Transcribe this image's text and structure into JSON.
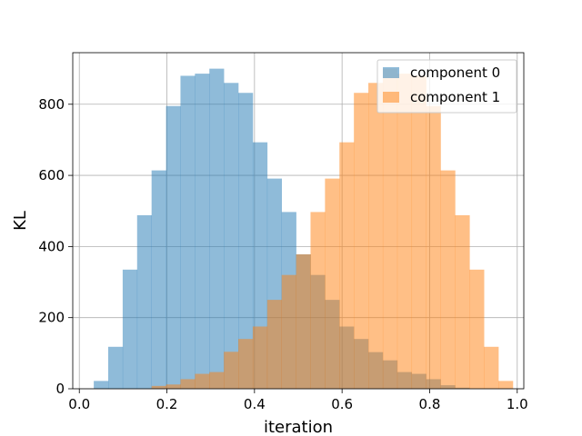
{
  "chart_data": {
    "type": "histogram",
    "title": "",
    "xlabel": "iteration",
    "ylabel": "KL",
    "xlim": [
      -0.015,
      1.015
    ],
    "ylim": [
      0,
      945
    ],
    "grid": true,
    "legend_position": "top-right",
    "xticks": [
      0.0,
      0.2,
      0.4,
      0.6,
      0.8,
      1.0
    ],
    "xtick_labels": [
      "0.0",
      "0.2",
      "0.4",
      "0.6",
      "0.8",
      "1.0"
    ],
    "yticks": [
      0,
      200,
      400,
      600,
      800
    ],
    "ytick_labels": [
      "0",
      "200",
      "400",
      "600",
      "800"
    ],
    "series": [
      {
        "name": "component 0",
        "color": "#1f77b4",
        "opacity": 0.5,
        "bins": [
          {
            "x0": 0.033,
            "x1": 0.066,
            "value": 22
          },
          {
            "x0": 0.066,
            "x1": 0.099,
            "value": 118
          },
          {
            "x0": 0.099,
            "x1": 0.132,
            "value": 335
          },
          {
            "x0": 0.132,
            "x1": 0.165,
            "value": 488
          },
          {
            "x0": 0.165,
            "x1": 0.198,
            "value": 614
          },
          {
            "x0": 0.198,
            "x1": 0.231,
            "value": 795
          },
          {
            "x0": 0.231,
            "x1": 0.264,
            "value": 880
          },
          {
            "x0": 0.264,
            "x1": 0.297,
            "value": 886
          },
          {
            "x0": 0.297,
            "x1": 0.33,
            "value": 900
          },
          {
            "x0": 0.33,
            "x1": 0.363,
            "value": 860
          },
          {
            "x0": 0.363,
            "x1": 0.396,
            "value": 832
          },
          {
            "x0": 0.396,
            "x1": 0.429,
            "value": 693
          },
          {
            "x0": 0.429,
            "x1": 0.462,
            "value": 591
          },
          {
            "x0": 0.462,
            "x1": 0.495,
            "value": 497
          },
          {
            "x0": 0.495,
            "x1": 0.528,
            "value": 378
          },
          {
            "x0": 0.528,
            "x1": 0.561,
            "value": 320
          },
          {
            "x0": 0.561,
            "x1": 0.594,
            "value": 250
          },
          {
            "x0": 0.594,
            "x1": 0.627,
            "value": 175
          },
          {
            "x0": 0.627,
            "x1": 0.66,
            "value": 140
          },
          {
            "x0": 0.66,
            "x1": 0.693,
            "value": 103
          },
          {
            "x0": 0.693,
            "x1": 0.726,
            "value": 80
          },
          {
            "x0": 0.726,
            "x1": 0.759,
            "value": 47
          },
          {
            "x0": 0.759,
            "x1": 0.792,
            "value": 42
          },
          {
            "x0": 0.792,
            "x1": 0.825,
            "value": 27
          },
          {
            "x0": 0.825,
            "x1": 0.858,
            "value": 10
          },
          {
            "x0": 0.858,
            "x1": 0.891,
            "value": 3
          }
        ]
      },
      {
        "name": "component 1",
        "color": "#ff7f0e",
        "opacity": 0.5,
        "bins": [
          {
            "x0": 0.165,
            "x1": 0.198,
            "value": 8
          },
          {
            "x0": 0.198,
            "x1": 0.231,
            "value": 12
          },
          {
            "x0": 0.231,
            "x1": 0.264,
            "value": 27
          },
          {
            "x0": 0.264,
            "x1": 0.297,
            "value": 42
          },
          {
            "x0": 0.297,
            "x1": 0.33,
            "value": 47
          },
          {
            "x0": 0.33,
            "x1": 0.363,
            "value": 104
          },
          {
            "x0": 0.363,
            "x1": 0.396,
            "value": 140
          },
          {
            "x0": 0.396,
            "x1": 0.429,
            "value": 175
          },
          {
            "x0": 0.429,
            "x1": 0.462,
            "value": 250
          },
          {
            "x0": 0.462,
            "x1": 0.495,
            "value": 320
          },
          {
            "x0": 0.495,
            "x1": 0.528,
            "value": 378
          },
          {
            "x0": 0.528,
            "x1": 0.561,
            "value": 497
          },
          {
            "x0": 0.561,
            "x1": 0.594,
            "value": 591
          },
          {
            "x0": 0.594,
            "x1": 0.627,
            "value": 693
          },
          {
            "x0": 0.627,
            "x1": 0.66,
            "value": 832
          },
          {
            "x0": 0.66,
            "x1": 0.693,
            "value": 860
          },
          {
            "x0": 0.693,
            "x1": 0.726,
            "value": 900
          },
          {
            "x0": 0.726,
            "x1": 0.759,
            "value": 886
          },
          {
            "x0": 0.759,
            "x1": 0.792,
            "value": 880
          },
          {
            "x0": 0.792,
            "x1": 0.825,
            "value": 795
          },
          {
            "x0": 0.825,
            "x1": 0.858,
            "value": 614
          },
          {
            "x0": 0.858,
            "x1": 0.891,
            "value": 488
          },
          {
            "x0": 0.891,
            "x1": 0.924,
            "value": 335
          },
          {
            "x0": 0.924,
            "x1": 0.957,
            "value": 118
          },
          {
            "x0": 0.957,
            "x1": 0.99,
            "value": 22
          }
        ]
      }
    ]
  }
}
